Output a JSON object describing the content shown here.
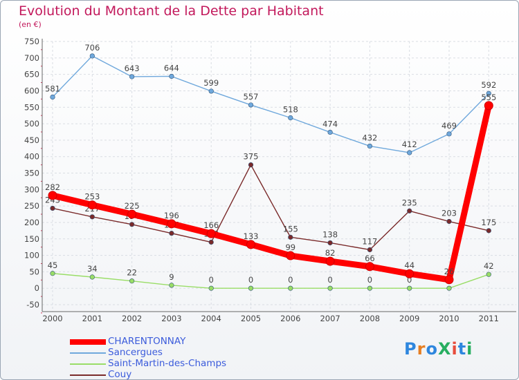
{
  "title": "Evolution du Montant de la Dette par Habitant",
  "unit": "(en €)",
  "logo": {
    "text": "ProXiti",
    "colors": [
      "#2e86de",
      "#e67e22",
      "#2e86de",
      "#27ae60",
      "#e74c3c",
      "#2e86de",
      "#27ae60"
    ]
  },
  "chart_data": {
    "type": "line",
    "categories": [
      "2000",
      "2001",
      "2002",
      "2003",
      "2004",
      "2005",
      "2006",
      "2007",
      "2008",
      "2009",
      "2010",
      "2011"
    ],
    "ylim": [
      -50,
      750
    ],
    "yticks": [
      -50,
      0,
      50,
      100,
      150,
      200,
      250,
      300,
      350,
      400,
      450,
      500,
      550,
      600,
      650,
      700,
      750
    ],
    "grid": true,
    "legend_position": "bottom-left",
    "series": [
      {
        "name": "CHARENTONNAY",
        "color": "#ff0000",
        "values": [
          282,
          253,
          225,
          196,
          166,
          133,
          99,
          82,
          66,
          44,
          26,
          555
        ]
      },
      {
        "name": "Sancergues",
        "color": "#6fa8dc",
        "values": [
          581,
          706,
          643,
          644,
          599,
          557,
          518,
          474,
          432,
          412,
          469,
          592
        ]
      },
      {
        "name": "Saint-Martin-des-Champs",
        "color": "#99dd66",
        "values": [
          45,
          34,
          22,
          9,
          0,
          0,
          0,
          0,
          0,
          0,
          0,
          42
        ]
      },
      {
        "name": "Couy",
        "color": "#7a2a2a",
        "values": [
          243,
          217,
          194,
          167,
          140,
          375,
          155,
          138,
          117,
          235,
          203,
          175
        ]
      }
    ]
  }
}
